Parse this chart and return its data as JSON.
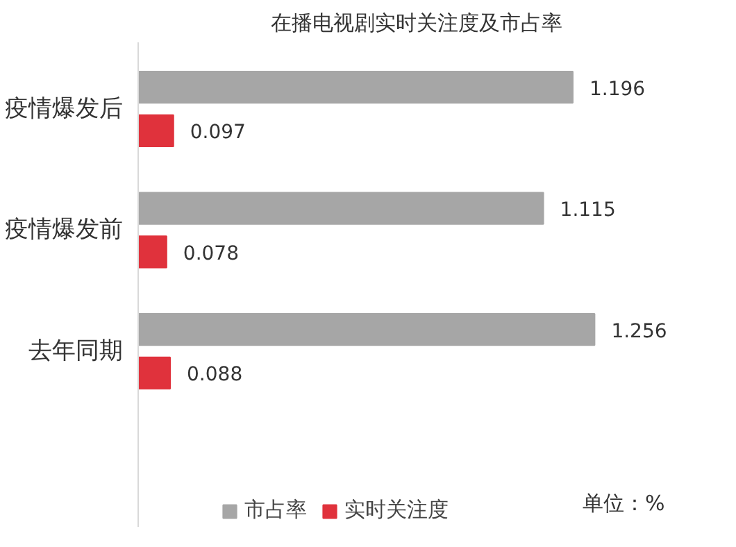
{
  "chart_data": {
    "type": "bar",
    "orientation": "horizontal",
    "title": "在播电视剧实时关注度及市占率",
    "categories": [
      "疫情爆发后",
      "疫情爆发前",
      "去年同期"
    ],
    "series": [
      {
        "name": "市占率",
        "color": "#a6a6a6",
        "values": [
          1.196,
          1.115,
          1.256
        ]
      },
      {
        "name": "实时关注度",
        "color": "#e0323c",
        "values": [
          0.097,
          0.078,
          0.088
        ]
      }
    ],
    "data_labels": true,
    "legend": "bottom",
    "grid": false,
    "annotations": [
      "单位：%"
    ]
  }
}
